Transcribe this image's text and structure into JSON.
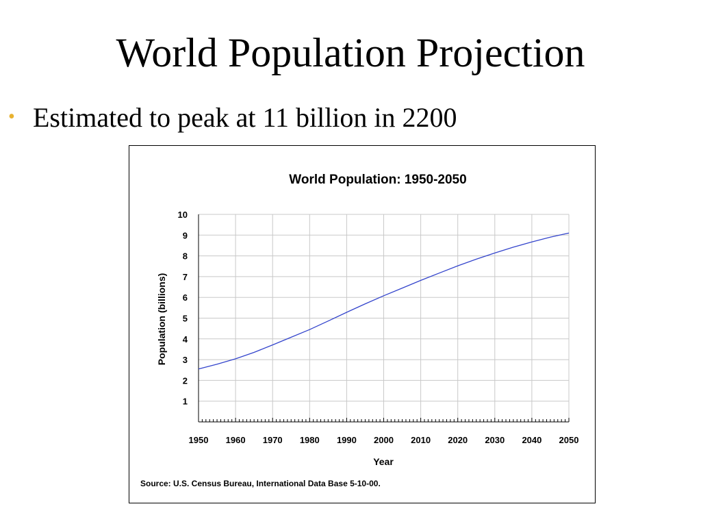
{
  "slide": {
    "title": "World Population Projection",
    "bullet": "Estimated to peak at 11 billion in 2200",
    "bullet_color": "#e8b230"
  },
  "chart_data": {
    "type": "line",
    "title": "World Population: 1950-2050",
    "xlabel": "Year",
    "ylabel": "Population (billions)",
    "source": "Source: U.S. Census Bureau, International Data Base 5-10-00.",
    "xlim": [
      1950,
      2050
    ],
    "ylim": [
      0,
      10
    ],
    "xticks": [
      1950,
      1960,
      1970,
      1980,
      1990,
      2000,
      2010,
      2020,
      2030,
      2040,
      2050
    ],
    "yticks": [
      1,
      2,
      3,
      4,
      5,
      6,
      7,
      8,
      9,
      10
    ],
    "grid": true,
    "line_color": "#3344cc",
    "series": [
      {
        "x": [
          1950,
          1955,
          1960,
          1965,
          1970,
          1975,
          1980,
          1985,
          1990,
          1995,
          2000,
          2005,
          2010,
          2015,
          2020,
          2025,
          2030,
          2035,
          2040,
          2045,
          2050
        ],
        "y": [
          2.55,
          2.78,
          3.04,
          3.35,
          3.71,
          4.08,
          4.45,
          4.86,
          5.28,
          5.69,
          6.08,
          6.45,
          6.82,
          7.17,
          7.52,
          7.84,
          8.14,
          8.42,
          8.67,
          8.9,
          9.1
        ]
      }
    ]
  }
}
